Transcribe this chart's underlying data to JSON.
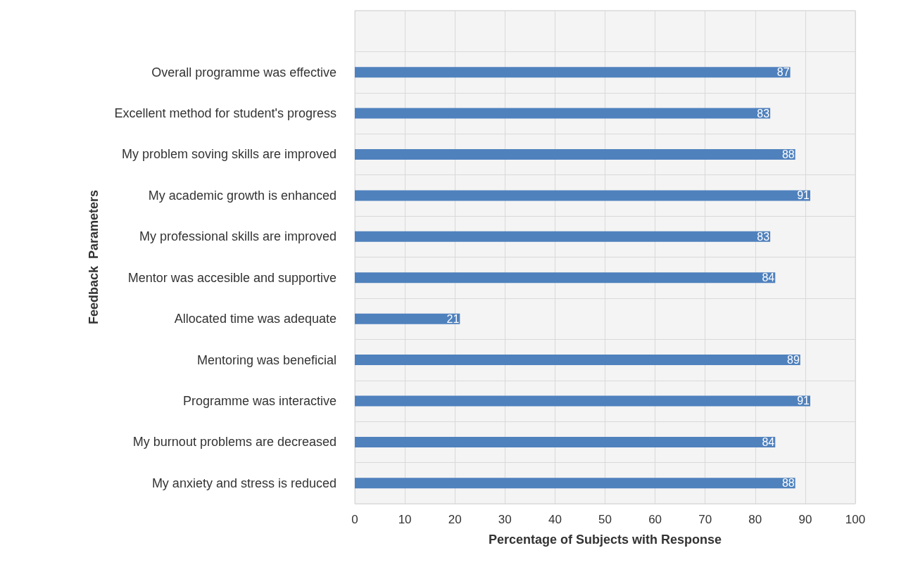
{
  "chart_data": {
    "type": "bar",
    "orientation": "horizontal",
    "xlabel": "Percentage of Subjects with Response",
    "ylabel": "Feedback  Parameters",
    "categories": [
      null,
      "Overall programme was effective",
      "Excellent method for student's progress",
      "My problem soving skills are improved",
      "My academic growth is enhanced",
      "My professional skills are improved",
      "Mentor was accesible and supportive",
      "Allocated time was adequate",
      "Mentoring was beneficial",
      "Programme was interactive",
      "My burnout problems are decreased",
      "My anxiety and stress is reduced"
    ],
    "values": [
      null,
      87,
      83,
      88,
      91,
      83,
      84,
      21,
      89,
      91,
      84,
      88
    ],
    "color": "#4f81bd",
    "data_labels": true,
    "xlim": [
      0,
      100
    ],
    "xticks": [
      0,
      10,
      20,
      30,
      40,
      50,
      60,
      70,
      80,
      90,
      100
    ],
    "grid": true
  }
}
